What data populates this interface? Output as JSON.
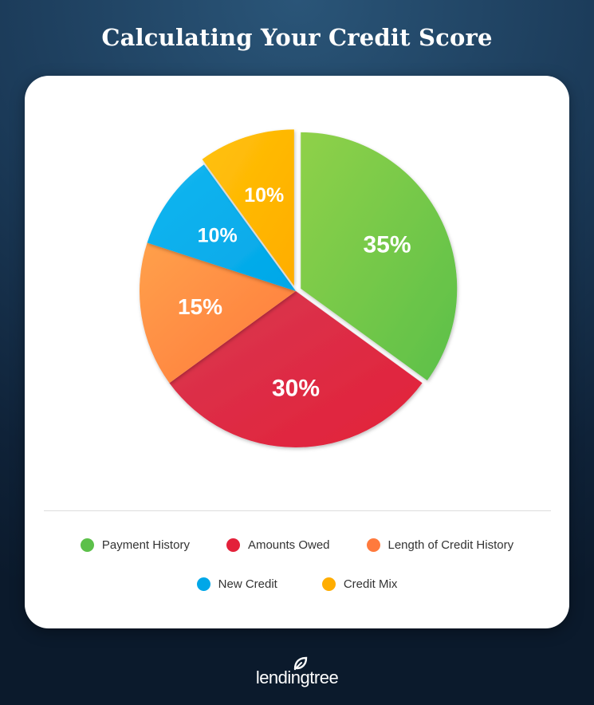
{
  "title": "Calculating Your Credit Score",
  "chart_data": {
    "type": "pie",
    "title": "Calculating Your Credit Score",
    "legend_placement": "bottom",
    "slices": [
      {
        "name": "Payment History",
        "value": 35,
        "label": "35%",
        "color": "#5cc04a",
        "color2": "#8fd14a",
        "exploded": true
      },
      {
        "name": "Amounts Owed",
        "value": 30,
        "label": "30%",
        "color": "#e3213a",
        "color2": "#d8374f",
        "exploded": false
      },
      {
        "name": "Length of Credit History",
        "value": 15,
        "label": "15%",
        "color": "#ff7a3d",
        "color2": "#ffa04a",
        "exploded": false
      },
      {
        "name": "New Credit",
        "value": 10,
        "label": "10%",
        "color": "#00a7e8",
        "color2": "#16b6f0",
        "exploded": false
      },
      {
        "name": "Credit Mix",
        "value": 10,
        "label": "10%",
        "color": "#ffad00",
        "color2": "#ffc20a",
        "exploded": true
      }
    ]
  },
  "legend": [
    {
      "label": "Payment History",
      "color": "#5cc04a"
    },
    {
      "label": "Amounts Owed",
      "color": "#e3213a"
    },
    {
      "label": "Length of Credit History",
      "color": "#ff7a3d"
    },
    {
      "label": "New Credit",
      "color": "#00a7e8"
    },
    {
      "label": "Credit Mix",
      "color": "#ffad00"
    }
  ],
  "footer": {
    "logo_text": "lendingtree",
    "logo_icon": "leaf-icon"
  }
}
